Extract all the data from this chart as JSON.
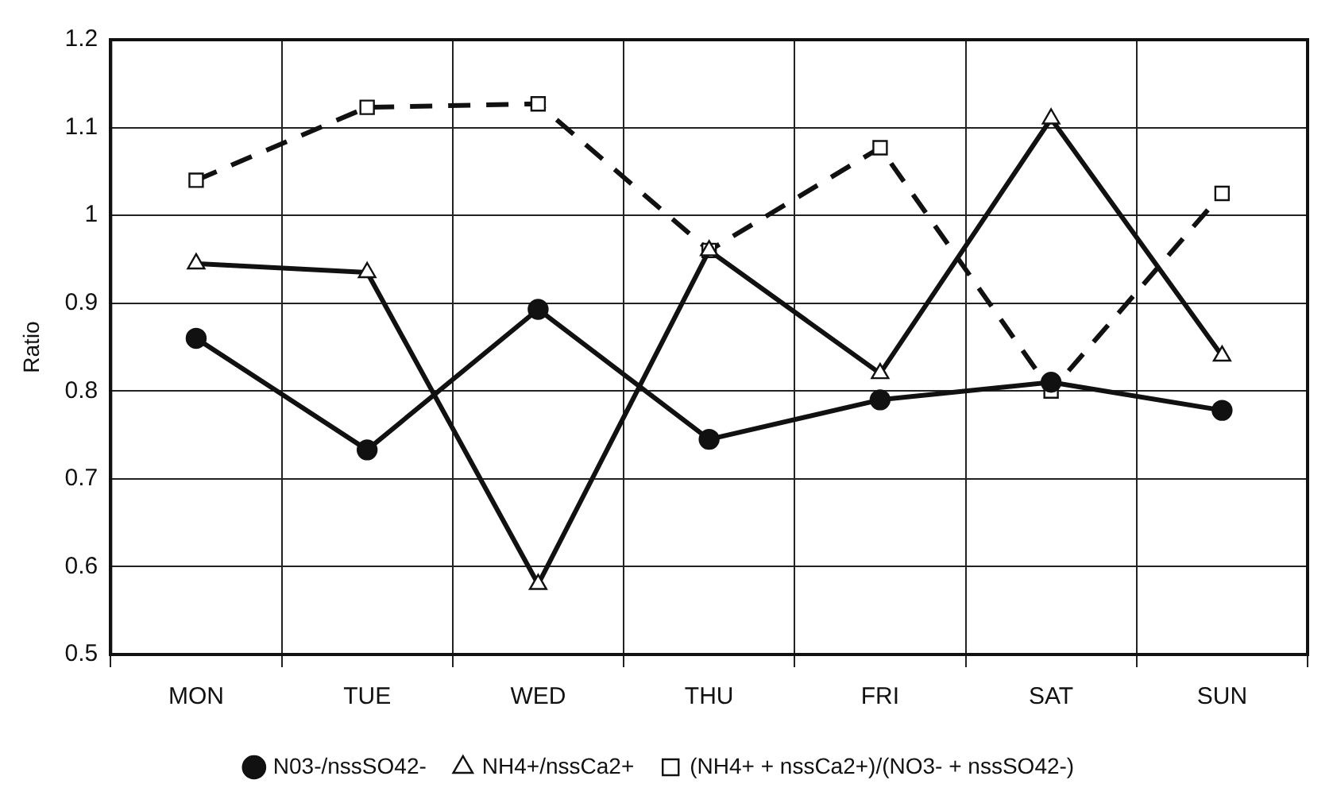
{
  "chart_data": {
    "type": "line",
    "ylabel": "Ratio",
    "categories": [
      "MON",
      "TUE",
      "WED",
      "THU",
      "FRI",
      "SAT",
      "SUN"
    ],
    "series": [
      {
        "name": "N03-/nssSO42-",
        "color": "#111111",
        "marker": "circle",
        "line_style": "solid",
        "values": [
          0.86,
          0.733,
          0.893,
          0.745,
          0.79,
          0.81,
          0.778
        ]
      },
      {
        "name": "NH4+/nssCa2+",
        "color": "#111111",
        "marker": "triangle",
        "line_style": "solid",
        "values": [
          0.945,
          0.935,
          0.58,
          0.96,
          0.82,
          1.11,
          0.84
        ]
      },
      {
        "name": "(NH4+ + nssCa2+)/(NO3- + nssSO42-)",
        "color": "#111111",
        "marker": "square",
        "line_style": "dashed",
        "values": [
          1.04,
          1.123,
          1.127,
          0.96,
          1.077,
          0.8,
          1.025
        ]
      }
    ],
    "ylim": [
      0.5,
      1.2
    ],
    "yticks": [
      0.5,
      0.6,
      0.7,
      0.8,
      0.9,
      1,
      1.1,
      1.2
    ],
    "grid": true,
    "legend": "bottom"
  }
}
